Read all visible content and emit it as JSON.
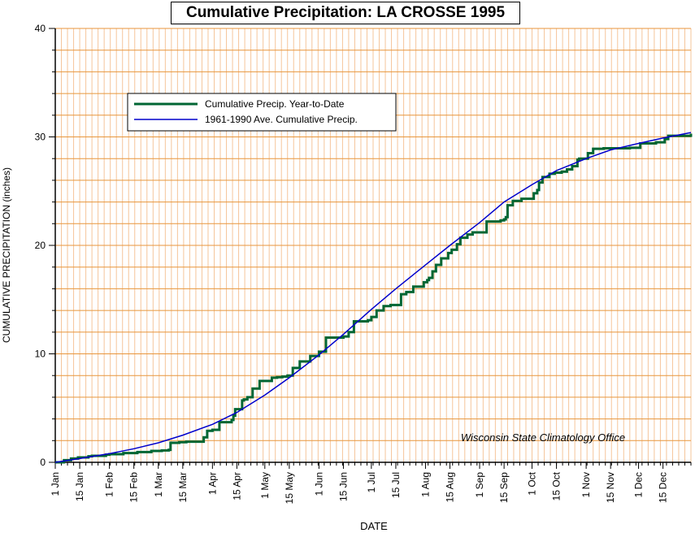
{
  "chart_data": {
    "type": "line",
    "title": "Cumulative Precipitation: LA CROSSE 1995",
    "xlabel": "DATE",
    "ylabel": "CUMULATIVE PRECIPITATION (inches)",
    "annotation": "Wisconsin State Climatology Office",
    "ylim": [
      0,
      40
    ],
    "xlim": [
      1,
      365
    ],
    "yticks": [
      0,
      10,
      20,
      30,
      40
    ],
    "xticks": [
      {
        "day": 1,
        "label": "1 Jan"
      },
      {
        "day": 15,
        "label": "15 Jan"
      },
      {
        "day": 32,
        "label": "1 Feb"
      },
      {
        "day": 46,
        "label": "15 Feb"
      },
      {
        "day": 60,
        "label": "1 Mar"
      },
      {
        "day": 74,
        "label": "15 Mar"
      },
      {
        "day": 91,
        "label": "1 Apr"
      },
      {
        "day": 105,
        "label": "15 Apr"
      },
      {
        "day": 121,
        "label": "1 May"
      },
      {
        "day": 135,
        "label": "15 May"
      },
      {
        "day": 152,
        "label": "1 Jun"
      },
      {
        "day": 166,
        "label": "15 Jun"
      },
      {
        "day": 182,
        "label": "1 Jul"
      },
      {
        "day": 196,
        "label": "15 Jul"
      },
      {
        "day": 213,
        "label": "1 Aug"
      },
      {
        "day": 227,
        "label": "15 Aug"
      },
      {
        "day": 244,
        "label": "1 Sep"
      },
      {
        "day": 258,
        "label": "15 Sep"
      },
      {
        "day": 274,
        "label": "1 Oct"
      },
      {
        "day": 288,
        "label": "15 Oct"
      },
      {
        "day": 305,
        "label": "1 Nov"
      },
      {
        "day": 319,
        "label": "15 Nov"
      },
      {
        "day": 335,
        "label": "1 Dec"
      },
      {
        "day": 349,
        "label": "15 Dec"
      }
    ],
    "grid": true,
    "legend": "top-left",
    "series": [
      {
        "name": "Cumulative Precip. Year-to-Date",
        "color": "#006633",
        "x": [
          1,
          6,
          10,
          14,
          20,
          22,
          30,
          32,
          40,
          48,
          56,
          62,
          66,
          67,
          72,
          76,
          86,
          88,
          91,
          95,
          102,
          103,
          104,
          108,
          109,
          111,
          114,
          118,
          125,
          128,
          131,
          134,
          137,
          141,
          147,
          152,
          156,
          166,
          169,
          172,
          180,
          182,
          185,
          189,
          193,
          199,
          202,
          206,
          212,
          214,
          215,
          217,
          219,
          222,
          226,
          228,
          231,
          233,
          237,
          240,
          248,
          256,
          258,
          259,
          260,
          263,
          268,
          275,
          277,
          278,
          280,
          284,
          287,
          291,
          294,
          297,
          300,
          301,
          306,
          309,
          315,
          330,
          336,
          345,
          350,
          352,
          365
        ],
        "y": [
          0,
          0.2,
          0.35,
          0.45,
          0.55,
          0.6,
          0.7,
          0.75,
          0.85,
          0.95,
          1.05,
          1.1,
          1.15,
          1.8,
          1.85,
          1.9,
          2.3,
          2.9,
          3.0,
          3.7,
          3.9,
          4.3,
          4.9,
          5.7,
          5.8,
          6.0,
          6.8,
          7.5,
          7.8,
          7.85,
          7.9,
          8.0,
          8.7,
          9.3,
          9.8,
          10.2,
          11.5,
          11.6,
          12.0,
          13.0,
          13.1,
          13.4,
          14.0,
          14.4,
          14.5,
          15.5,
          15.7,
          16.2,
          16.6,
          16.8,
          17.0,
          17.6,
          18.2,
          18.8,
          19.3,
          19.6,
          20.1,
          20.7,
          21.0,
          21.2,
          22.2,
          22.3,
          22.4,
          22.6,
          23.7,
          24.1,
          24.3,
          24.8,
          25.1,
          25.8,
          26.3,
          26.6,
          26.7,
          26.8,
          27.0,
          27.3,
          27.9,
          28.0,
          28.5,
          28.9,
          28.95,
          29.0,
          29.4,
          29.5,
          29.8,
          30.1,
          30.3
        ]
      },
      {
        "name": "1961-1990 Ave. Cumulative Precip.",
        "color": "#0000cc",
        "x": [
          1,
          15,
          32,
          46,
          60,
          74,
          91,
          105,
          121,
          135,
          152,
          166,
          182,
          196,
          213,
          227,
          244,
          258,
          274,
          288,
          305,
          319,
          335,
          349,
          365
        ],
        "y": [
          0,
          0.35,
          0.8,
          1.25,
          1.8,
          2.5,
          3.5,
          4.6,
          6.2,
          7.8,
          9.9,
          11.8,
          14.1,
          16.0,
          18.2,
          20.0,
          22.1,
          24.0,
          25.6,
          26.9,
          28.0,
          28.8,
          29.4,
          29.9,
          30.4
        ]
      }
    ]
  }
}
